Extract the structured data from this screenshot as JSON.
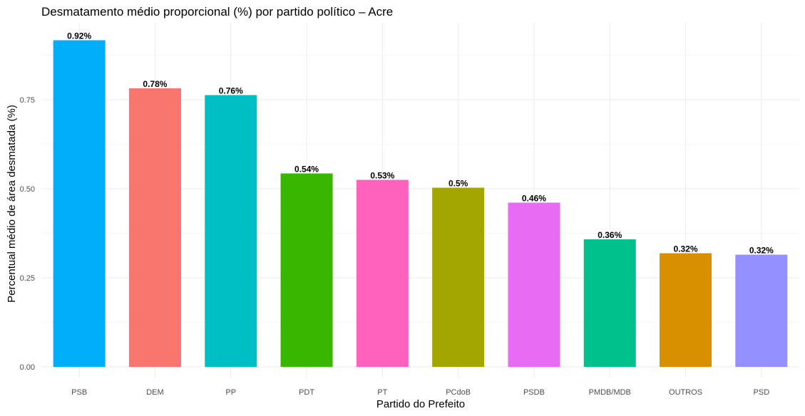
{
  "chart_data": {
    "type": "bar",
    "title": "Desmatamento médio proporcional (%) por partido político – Acre",
    "xlabel": "Partido do Prefeito",
    "ylabel": "Percentual médio de área desmatada (%)",
    "ylim": [
      0,
      0.96
    ],
    "yticks": [
      0.0,
      0.25,
      0.5,
      0.75
    ],
    "ytick_labels": [
      "0.00",
      "0.25",
      "0.50",
      "0.75"
    ],
    "grid": true,
    "categories": [
      "PSB",
      "DEM",
      "PP",
      "PDT",
      "PT",
      "PCdoB",
      "PSDB",
      "PMDB/MDB",
      "OUTROS",
      "PSD"
    ],
    "values": [
      0.917,
      0.782,
      0.763,
      0.543,
      0.525,
      0.503,
      0.461,
      0.358,
      0.319,
      0.315
    ],
    "labels": [
      "0.92%",
      "0.78%",
      "0.76%",
      "0.54%",
      "0.53%",
      "0.5%",
      "0.46%",
      "0.36%",
      "0.32%",
      "0.32%"
    ],
    "colors": [
      "#00AEFA",
      "#F8766D",
      "#00BFC4",
      "#39B600",
      "#FF62BC",
      "#A3A500",
      "#E76BF3",
      "#00C08B",
      "#D89000",
      "#9590FF"
    ]
  }
}
